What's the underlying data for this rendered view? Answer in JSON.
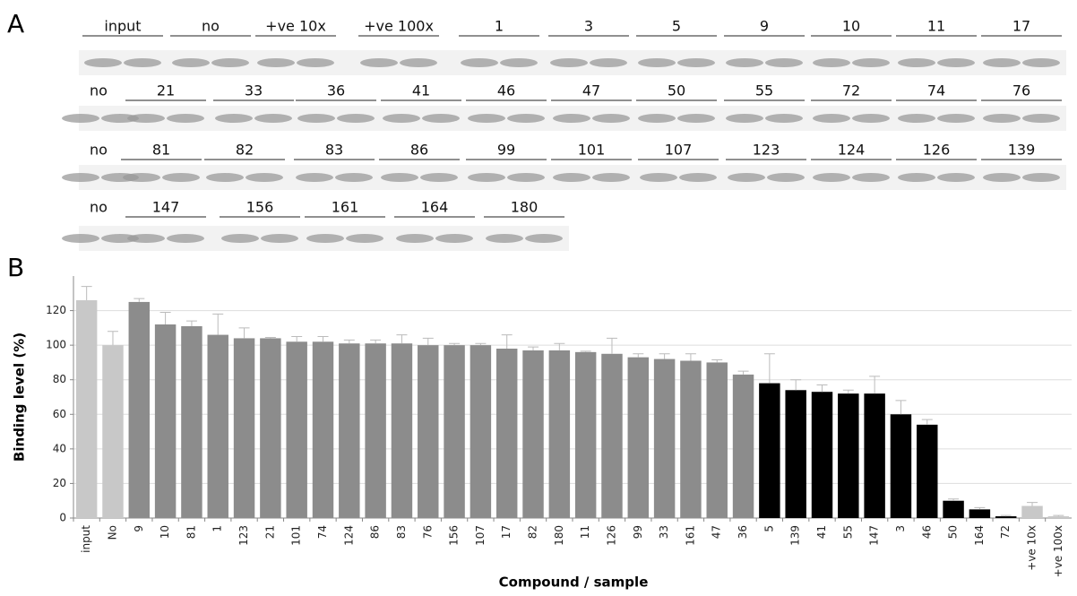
{
  "panel_a": {
    "label": "A",
    "rows": [
      [
        "input",
        "no",
        "+ve 10x",
        "+ve 100x",
        "1",
        "3",
        "5",
        "9",
        "10",
        "11",
        "17"
      ],
      [
        "no",
        "21",
        "33",
        "36",
        "41",
        "46",
        "47",
        "50",
        "55",
        "72",
        "74",
        "76"
      ],
      [
        "no",
        "81",
        "82",
        "83",
        "86",
        "99",
        "101",
        "107",
        "123",
        "124",
        "126",
        "139"
      ],
      [
        "no",
        "147",
        "156",
        "161",
        "164",
        "180"
      ]
    ]
  },
  "panel_b": {
    "label": "B"
  },
  "chart_data": {
    "type": "bar",
    "x_label": "Compound  / sample",
    "y_label": "Binding level (%)",
    "categories": [
      "input",
      "No",
      "9",
      "10",
      "81",
      "1",
      "123",
      "21",
      "101",
      "74",
      "124",
      "86",
      "83",
      "76",
      "156",
      "107",
      "17",
      "82",
      "180",
      "11",
      "126",
      "99",
      "33",
      "161",
      "47",
      "36",
      "5",
      "139",
      "41",
      "55",
      "147",
      "3",
      "46",
      "50",
      "164",
      "72",
      "+ve 10x",
      "+ve 100x"
    ],
    "values": [
      126,
      100,
      125,
      112,
      111,
      106,
      104,
      104,
      102,
      102,
      101,
      101,
      101,
      100,
      100,
      100,
      98,
      97,
      97,
      96,
      95,
      93,
      92,
      91,
      90,
      83,
      78,
      74,
      73,
      72,
      72,
      60,
      54,
      10,
      5,
      1,
      7,
      1
    ],
    "errors": [
      8,
      8,
      2,
      7,
      3,
      12,
      6,
      0.5,
      3,
      3,
      2,
      2,
      5,
      4,
      1,
      1,
      8,
      2,
      4,
      0.5,
      9,
      2,
      3,
      4,
      1.5,
      2,
      17,
      6,
      4,
      2,
      10,
      8,
      3,
      1,
      1,
      0.5,
      2,
      0.5
    ],
    "colors": [
      "#c8c8c8",
      "#c8c8c8",
      "#8c8c8c",
      "#8c8c8c",
      "#8c8c8c",
      "#8c8c8c",
      "#8c8c8c",
      "#8c8c8c",
      "#8c8c8c",
      "#8c8c8c",
      "#8c8c8c",
      "#8c8c8c",
      "#8c8c8c",
      "#8c8c8c",
      "#8c8c8c",
      "#8c8c8c",
      "#8c8c8c",
      "#8c8c8c",
      "#8c8c8c",
      "#8c8c8c",
      "#8c8c8c",
      "#8c8c8c",
      "#8c8c8c",
      "#8c8c8c",
      "#8c8c8c",
      "#8c8c8c",
      "#000000",
      "#000000",
      "#000000",
      "#000000",
      "#000000",
      "#000000",
      "#000000",
      "#000000",
      "#000000",
      "#000000",
      "#c8c8c8",
      "#c8c8c8"
    ],
    "error_color": "#bbbbbb",
    "ylim": [
      0,
      140
    ],
    "yticks": [
      0,
      20,
      40,
      60,
      80,
      100,
      120
    ],
    "grid": true
  }
}
